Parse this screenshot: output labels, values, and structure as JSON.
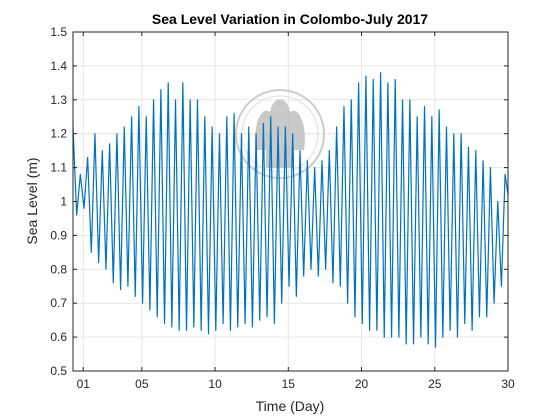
{
  "chart_data": {
    "type": "line",
    "title": "Sea Level Variation in Colombo-July 2017",
    "xlabel": "Time (Day)",
    "ylabel": "Sea Level (m)",
    "xlim": [
      0.3,
      30
    ],
    "ylim": [
      0.5,
      1.5
    ],
    "xticks": [
      {
        "value": 1,
        "label": "01"
      },
      {
        "value": 5,
        "label": "05"
      },
      {
        "value": 10,
        "label": "10"
      },
      {
        "value": 15,
        "label": "15"
      },
      {
        "value": 20,
        "label": "20"
      },
      {
        "value": 25,
        "label": "25"
      },
      {
        "value": 30,
        "label": "30"
      }
    ],
    "yticks": [
      {
        "value": 0.5,
        "label": "0.5"
      },
      {
        "value": 0.6,
        "label": "0.6"
      },
      {
        "value": 0.7,
        "label": "0.7"
      },
      {
        "value": 0.8,
        "label": "0.8"
      },
      {
        "value": 0.9,
        "label": "0.9"
      },
      {
        "value": 1.0,
        "label": "1"
      },
      {
        "value": 1.1,
        "label": "1.1"
      },
      {
        "value": 1.2,
        "label": "1.2"
      },
      {
        "value": 1.3,
        "label": "1.3"
      },
      {
        "value": 1.4,
        "label": "1.4"
      },
      {
        "value": 1.5,
        "label": "1.5"
      }
    ],
    "grid": true,
    "series": [
      {
        "color": "#0072BD",
        "x": [
          0.3,
          0.55,
          0.8,
          1.05,
          1.3,
          1.55,
          1.8,
          2.05,
          2.3,
          2.55,
          2.8,
          3.05,
          3.3,
          3.55,
          3.8,
          4.05,
          4.3,
          4.55,
          4.8,
          5.05,
          5.3,
          5.55,
          5.8,
          6.05,
          6.3,
          6.55,
          6.8,
          7.05,
          7.3,
          7.55,
          7.8,
          8.05,
          8.3,
          8.55,
          8.8,
          9.05,
          9.3,
          9.55,
          9.8,
          10.05,
          10.3,
          10.55,
          10.8,
          11.05,
          11.3,
          11.55,
          11.8,
          12.05,
          12.3,
          12.55,
          12.8,
          13.05,
          13.3,
          13.55,
          13.8,
          14.05,
          14.3,
          14.55,
          14.8,
          15.05,
          15.3,
          15.55,
          15.8,
          16.05,
          16.3,
          16.55,
          16.8,
          17.05,
          17.3,
          17.55,
          17.8,
          18.05,
          18.3,
          18.55,
          18.8,
          19.05,
          19.3,
          19.55,
          19.8,
          20.05,
          20.3,
          20.55,
          20.8,
          21.05,
          21.3,
          21.55,
          21.8,
          22.05,
          22.3,
          22.55,
          22.8,
          23.05,
          23.3,
          23.55,
          23.8,
          24.05,
          24.3,
          24.55,
          24.8,
          25.05,
          25.3,
          25.55,
          25.8,
          26.05,
          26.3,
          26.55,
          26.8,
          27.05,
          27.3,
          27.55,
          27.8,
          28.05,
          28.3,
          28.55,
          28.8,
          29.05,
          29.3,
          29.55,
          29.8,
          30.0
        ],
        "y": [
          1.22,
          0.96,
          1.08,
          0.98,
          1.13,
          0.85,
          1.2,
          0.82,
          1.15,
          0.8,
          1.17,
          0.76,
          1.2,
          0.74,
          1.22,
          0.75,
          1.25,
          0.72,
          1.28,
          0.7,
          1.25,
          0.68,
          1.3,
          0.66,
          1.33,
          0.64,
          1.35,
          0.63,
          1.3,
          0.62,
          1.35,
          0.62,
          1.3,
          0.63,
          1.3,
          0.62,
          1.25,
          0.61,
          1.22,
          0.62,
          1.2,
          0.64,
          1.25,
          0.62,
          1.26,
          0.63,
          1.2,
          0.64,
          1.22,
          0.63,
          1.2,
          0.65,
          1.23,
          0.66,
          1.25,
          0.64,
          1.22,
          0.7,
          1.22,
          0.75,
          1.2,
          0.72,
          1.15,
          0.78,
          1.12,
          0.8,
          1.1,
          0.78,
          1.12,
          0.8,
          1.15,
          0.76,
          1.22,
          0.75,
          1.28,
          0.7,
          1.3,
          0.66,
          1.35,
          0.64,
          1.37,
          0.62,
          1.36,
          0.62,
          1.38,
          0.6,
          1.35,
          0.6,
          1.36,
          0.6,
          1.3,
          0.58,
          1.3,
          0.58,
          1.25,
          0.6,
          1.28,
          0.58,
          1.25,
          0.57,
          1.27,
          0.6,
          1.22,
          0.62,
          1.2,
          0.6,
          1.2,
          0.64,
          1.16,
          0.62,
          1.15,
          0.66,
          1.12,
          0.66,
          1.1,
          0.7,
          1.0,
          0.75,
          1.08,
          1.02
        ]
      }
    ]
  }
}
